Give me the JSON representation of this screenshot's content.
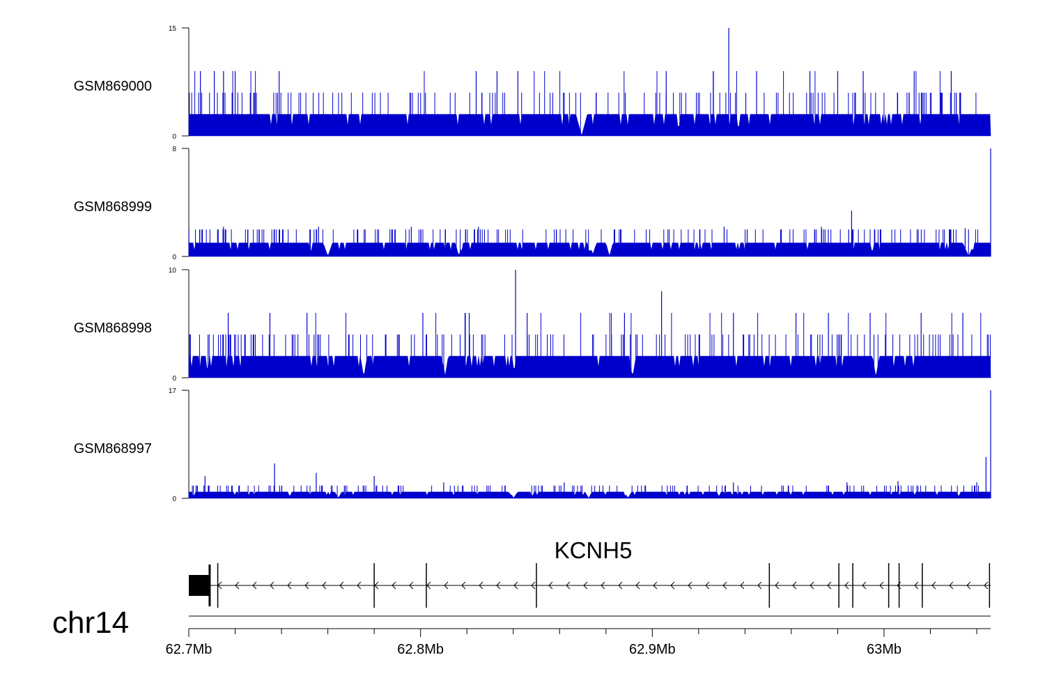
{
  "chart_data": {
    "type": "area",
    "chromosome": "chr14",
    "xlim_mb": [
      62.7,
      63.046
    ],
    "x_ticks": [
      {
        "value": 62.7,
        "label": "62.7Mb"
      },
      {
        "value": 62.8,
        "label": "62.8Mb"
      },
      {
        "value": 62.9,
        "label": "62.9Mb"
      },
      {
        "value": 63.0,
        "label": "63Mb"
      }
    ],
    "x_minor_ticks_mb": [
      62.72,
      62.74,
      62.76,
      62.78,
      62.82,
      62.84,
      62.86,
      62.88,
      62.92,
      62.94,
      62.96,
      62.98,
      63.02,
      63.04
    ],
    "color": "#0000cc",
    "tracks": [
      {
        "name": "GSM869000",
        "ymax_label": "15",
        "ymin_label": "0",
        "ylim": [
          0,
          15
        ],
        "baseline": 3,
        "level_values": [
          6,
          9
        ],
        "peaks": [
          [
            62.705,
            9
          ],
          [
            62.711,
            9
          ],
          [
            62.715,
            9
          ],
          [
            62.72,
            9
          ],
          [
            62.739,
            9
          ],
          [
            62.824,
            9
          ],
          [
            62.833,
            9
          ],
          [
            62.842,
            9
          ],
          [
            62.906,
            9
          ],
          [
            62.933,
            15
          ],
          [
            62.945,
            9
          ],
          [
            62.968,
            9
          ],
          [
            62.98,
            9
          ],
          [
            62.991,
            9
          ],
          [
            63.013,
            9
          ],
          [
            63.029,
            9
          ]
        ],
        "gaps": [
          [
            62.867,
            62.872
          ]
        ]
      },
      {
        "name": "GSM868999",
        "ymax_label": "8",
        "ymin_label": "0",
        "ylim": [
          0,
          8
        ],
        "baseline": 1,
        "level_values": [
          2
        ],
        "peaks": [
          [
            62.715,
            2.2
          ],
          [
            62.756,
            2.2
          ],
          [
            62.796,
            2.2
          ],
          [
            62.825,
            2.2
          ],
          [
            62.931,
            2.2
          ],
          [
            62.973,
            2.2
          ],
          [
            62.986,
            3.4
          ],
          [
            63.035,
            2.1
          ],
          [
            63.046,
            8
          ]
        ],
        "gaps": [
          [
            62.758,
            62.762
          ],
          [
            62.815,
            62.818
          ],
          [
            62.872,
            62.876
          ],
          [
            62.88,
            62.883
          ],
          [
            63.034,
            63.039
          ]
        ]
      },
      {
        "name": "GSM868998",
        "ymax_label": "10",
        "ymin_label": "0",
        "ylim": [
          0,
          10
        ],
        "baseline": 2,
        "level_values": [
          4,
          6
        ],
        "peaks": [
          [
            62.717,
            6
          ],
          [
            62.735,
            6
          ],
          [
            62.751,
            6
          ],
          [
            62.801,
            6
          ],
          [
            62.821,
            6
          ],
          [
            62.841,
            10
          ],
          [
            62.846,
            6
          ],
          [
            62.888,
            6
          ],
          [
            62.904,
            8
          ],
          [
            62.935,
            6
          ],
          [
            62.962,
            6
          ],
          [
            62.976,
            6
          ],
          [
            62.994,
            6
          ],
          [
            63.016,
            6
          ],
          [
            63.034,
            6
          ]
        ],
        "gaps": [
          [
            62.774,
            62.777
          ],
          [
            62.809,
            62.812
          ],
          [
            62.89,
            62.893
          ],
          [
            62.995,
            62.998
          ]
        ]
      },
      {
        "name": "GSM868997",
        "ymax_label": "17",
        "ymin_label": "0",
        "ylim": [
          0,
          17
        ],
        "baseline": 1,
        "level_values": [
          2
        ],
        "peaks": [
          [
            62.707,
            3.5
          ],
          [
            62.737,
            5.5
          ],
          [
            62.755,
            4
          ],
          [
            62.78,
            3.5
          ],
          [
            62.81,
            2.5
          ],
          [
            62.862,
            2.5
          ],
          [
            62.935,
            2.5
          ],
          [
            62.984,
            2.5
          ],
          [
            63.006,
            2.7
          ],
          [
            63.04,
            2.5
          ],
          [
            63.044,
            6.5
          ],
          [
            63.046,
            17
          ]
        ],
        "gaps": [
          [
            62.763,
            62.766
          ],
          [
            62.838,
            62.842
          ],
          [
            62.871,
            62.874
          ],
          [
            62.888,
            62.891
          ]
        ]
      }
    ],
    "gene": {
      "name": "KCNH5",
      "strand": "-",
      "start_mb": 62.7,
      "end_mb": 63.046,
      "utr_block_mb": [
        62.7,
        62.709
      ],
      "exons_mb": [
        62.7125,
        62.78,
        62.8025,
        62.85,
        62.9505,
        62.9805,
        62.9865,
        63.002,
        63.0065,
        63.0165,
        63.0455
      ]
    }
  }
}
